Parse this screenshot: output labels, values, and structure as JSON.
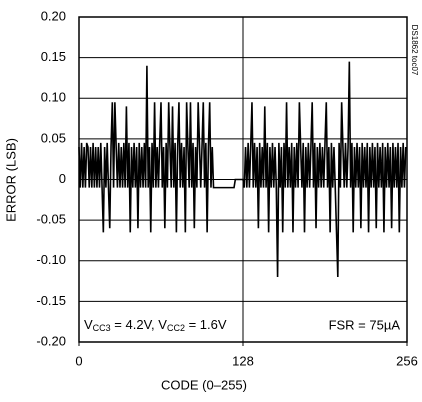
{
  "chart_data": {
    "type": "line",
    "x_label": "CODE (0–255)",
    "y_label": "ERROR (LSB)",
    "side_note": "DS1862 toc07",
    "condition": [
      "V",
      "CC3",
      " = 4.2V, V",
      "CC2",
      " = 1.6V"
    ],
    "fsr": "FSR = 75µA",
    "xlim": [
      0,
      256
    ],
    "xticks": [
      0,
      128,
      256
    ],
    "ylim": [
      -0.2,
      0.2
    ],
    "yticks": [
      {
        "value": -0.2,
        "label": "-0.20"
      },
      {
        "value": -0.15,
        "label": "-0.15"
      },
      {
        "value": -0.1,
        "label": "-0.10"
      },
      {
        "value": -0.05,
        "label": "-0.05"
      },
      0,
      {
        "value": 0.05,
        "label": "0.05"
      },
      {
        "value": 0.1,
        "label": "0.10"
      },
      {
        "value": 0.15,
        "label": "0.15"
      },
      {
        "value": 0.2,
        "label": "0.20"
      }
    ],
    "grid": true,
    "vgrid": [
      128
    ],
    "series": [
      {
        "color": "#000000",
        "x": [
          0,
          1,
          2,
          3,
          4,
          5,
          6,
          7,
          8,
          9,
          10,
          11,
          12,
          13,
          14,
          15,
          16,
          17,
          18,
          19,
          20,
          21,
          22,
          23,
          24,
          25,
          26,
          27,
          28,
          29,
          30,
          31,
          32,
          33,
          34,
          35,
          36,
          37,
          38,
          39,
          40,
          41,
          42,
          43,
          44,
          45,
          46,
          47,
          48,
          49,
          50,
          51,
          52,
          53,
          54,
          55,
          56,
          57,
          58,
          59,
          60,
          61,
          62,
          63,
          64,
          65,
          66,
          67,
          68,
          69,
          70,
          71,
          72,
          73,
          74,
          75,
          76,
          77,
          78,
          79,
          80,
          81,
          82,
          83,
          84,
          85,
          86,
          87,
          88,
          89,
          90,
          91,
          92,
          93,
          94,
          95,
          96,
          97,
          98,
          99,
          100,
          101,
          102,
          103,
          104,
          105,
          106,
          107,
          108,
          109,
          110,
          111,
          112,
          113,
          114,
          115,
          116,
          117,
          118,
          119,
          120,
          121,
          122,
          123,
          124,
          125,
          126,
          127,
          128,
          129,
          130,
          131,
          132,
          133,
          134,
          135,
          136,
          137,
          138,
          139,
          140,
          141,
          142,
          143,
          144,
          145,
          146,
          147,
          148,
          149,
          150,
          151,
          152,
          153,
          154,
          155,
          156,
          157,
          158,
          159,
          160,
          161,
          162,
          163,
          164,
          165,
          166,
          167,
          168,
          169,
          170,
          171,
          172,
          173,
          174,
          175,
          176,
          177,
          178,
          179,
          180,
          181,
          182,
          183,
          184,
          185,
          186,
          187,
          188,
          189,
          190,
          191,
          192,
          193,
          194,
          195,
          196,
          197,
          198,
          199,
          200,
          201,
          202,
          203,
          204,
          205,
          206,
          207,
          208,
          209,
          210,
          211,
          212,
          213,
          214,
          215,
          216,
          217,
          218,
          219,
          220,
          221,
          222,
          223,
          224,
          225,
          226,
          227,
          228,
          229,
          230,
          231,
          232,
          233,
          234,
          235,
          236,
          237,
          238,
          239,
          240,
          241,
          242,
          243,
          244,
          245,
          246,
          247,
          248,
          249,
          250,
          251,
          252,
          253,
          254,
          255
        ],
        "values": [
          0.04,
          -0.01,
          0.045,
          -0.01,
          0.04,
          -0.01,
          0.045,
          0.04,
          -0.01,
          0.04,
          -0.01,
          0.045,
          -0.01,
          0.04,
          -0.01,
          0.04,
          -0.01,
          0.045,
          -0.01,
          -0.065,
          0.04,
          -0.01,
          0.045,
          -0.01,
          -0.06,
          0.04,
          0.095,
          -0.01,
          0.095,
          0.04,
          -0.01,
          0.045,
          -0.01,
          0.04,
          -0.01,
          0.045,
          -0.01,
          0.09,
          -0.01,
          0.045,
          -0.065,
          0.04,
          -0.01,
          0.045,
          -0.01,
          0.04,
          -0.06,
          0.045,
          -0.01,
          0.04,
          -0.01,
          0.045,
          -0.01,
          0.14,
          -0.01,
          0.04,
          -0.065,
          0.045,
          -0.01,
          0.095,
          -0.01,
          0.04,
          -0.01,
          0.045,
          0.095,
          -0.01,
          0.04,
          -0.06,
          0.045,
          -0.01,
          0.095,
          0.04,
          -0.01,
          0.09,
          -0.01,
          0.045,
          -0.065,
          0.04,
          0.095,
          -0.01,
          0.045,
          -0.01,
          0.04,
          -0.065,
          0.095,
          0.04,
          -0.01,
          0.095,
          -0.01,
          0.045,
          -0.06,
          0.04,
          -0.01,
          0.095,
          0.045,
          -0.01,
          0.04,
          0.095,
          -0.01,
          0.045,
          -0.065,
          0.04,
          0.095,
          -0.01,
          0.04,
          -0.01,
          -0.01,
          -0.01,
          -0.01,
          -0.01,
          -0.01,
          -0.01,
          -0.01,
          -0.01,
          -0.01,
          -0.01,
          -0.01,
          -0.01,
          -0.01,
          -0.01,
          -0.01,
          -0.01,
          0,
          0,
          0,
          0,
          0,
          0,
          0,
          -0.01,
          0.04,
          -0.01,
          0.045,
          -0.01,
          0.04,
          0.095,
          -0.01,
          0.045,
          -0.01,
          0.04,
          -0.06,
          0.045,
          -0.01,
          0.04,
          -0.01,
          0.09,
          -0.01,
          0.045,
          -0.065,
          0.04,
          -0.01,
          0.045,
          -0.01,
          0.04,
          -0.01,
          -0.12,
          0.045,
          -0.01,
          0.04,
          -0.065,
          0.045,
          -0.01,
          0.095,
          -0.01,
          0.04,
          -0.01,
          0.045,
          -0.065,
          0.04,
          -0.01,
          0.045,
          -0.01,
          0.095,
          0.04,
          -0.01,
          0.045,
          -0.065,
          0.04,
          -0.01,
          0.045,
          -0.01,
          0.04,
          0.095,
          -0.01,
          0.045,
          -0.06,
          0.04,
          -0.01,
          0.045,
          -0.01,
          0.04,
          -0.01,
          0.045,
          0.095,
          -0.01,
          0.04,
          -0.065,
          0.045,
          -0.01,
          0.04,
          -0.01,
          -0.065,
          -0.12,
          0.045,
          -0.01,
          0.095,
          0.04,
          -0.01,
          0.045,
          -0.01,
          0.04,
          0.145,
          -0.01,
          0.045,
          -0.065,
          0.04,
          -0.01,
          0.045,
          -0.01,
          0.04,
          -0.06,
          0.045,
          -0.01,
          0.04,
          -0.01,
          0.045,
          -0.065,
          0.04,
          -0.01,
          0.045,
          -0.01,
          0.04,
          -0.06,
          0.045,
          -0.01,
          0.04,
          -0.01,
          0.045,
          -0.065,
          0.04,
          -0.01,
          0.045,
          -0.01,
          0.04,
          -0.06,
          0.045,
          -0.01,
          0.04,
          -0.01,
          0.045,
          -0.065,
          0.04,
          -0.01,
          0.045,
          -0.01,
          0.04
        ]
      }
    ]
  }
}
